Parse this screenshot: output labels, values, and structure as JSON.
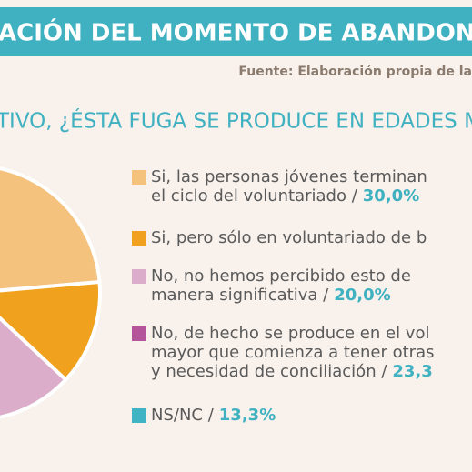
{
  "chart_data": {
    "type": "pie",
    "title": "ACIÓN DEL MOMENTO DE ABANDONO",
    "source": "Fuente: Elaboración propia de la",
    "subtitle": "TIVO, ¿ÉSTA FUGA SE PRODUCE EN EDADES M",
    "categories": [
      [
        "Si, las personas jóvenes terminan",
        "el ciclo del voluntariado /"
      ],
      [
        "Si, pero sólo en voluntariado de b"
      ],
      [
        "No, no hemos percibido esto de",
        "manera significativa /"
      ],
      [
        "No, de hecho se produce en el vol",
        "mayor que comienza a tener otras",
        "y necesidad de conciliación /"
      ],
      [
        "NS/NC /"
      ]
    ],
    "values": [
      30.0,
      13.3,
      20.0,
      23.3,
      13.3
    ],
    "value_labels": [
      "30,0%",
      null,
      "20,0%",
      "23,3",
      "13,3%"
    ],
    "colors": [
      "#f4c27c",
      "#f0a21e",
      "#dbadcb",
      "#b4559c",
      "#40b4c4"
    ]
  }
}
